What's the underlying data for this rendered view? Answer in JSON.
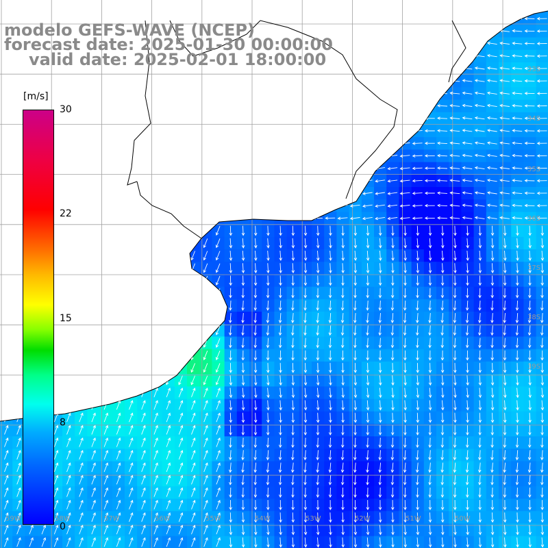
{
  "title": {
    "model": "modelo GEFS-WAVE (NCEP)",
    "forecast_date": "forecast date: 2025-01-30 00:00:00",
    "valid_date": "valid date: 2025-02-01 18:00:00"
  },
  "colorbar": {
    "units": "[m/s]",
    "ticks": [
      "30",
      "22",
      "15",
      "8",
      "0"
    ],
    "tick_values": [
      30,
      22,
      15,
      8,
      0
    ],
    "vmin": 0,
    "vmax": 30,
    "colors": [
      "#0000ff",
      "#0066ff",
      "#00aaff",
      "#00ffee",
      "#00ff88",
      "#00dd00",
      "#88ff00",
      "#ffff00",
      "#ffbb00",
      "#ff6600",
      "#ff0000",
      "#ee0044",
      "#cc0088"
    ]
  },
  "map": {
    "variable": "wind speed and direction",
    "lat_labels": [
      "33S",
      "34S",
      "35S",
      "36S",
      "37S",
      "38S",
      "39S"
    ],
    "lon_labels": [
      "59W",
      "58W",
      "57W",
      "56W",
      "55W",
      "54W",
      "53W",
      "52W",
      "51W",
      "50W"
    ],
    "land_color": "#ffffff",
    "grid_color": "#a0a0a0",
    "coast_color": "#000000",
    "arrow_color": "#ffffff"
  }
}
